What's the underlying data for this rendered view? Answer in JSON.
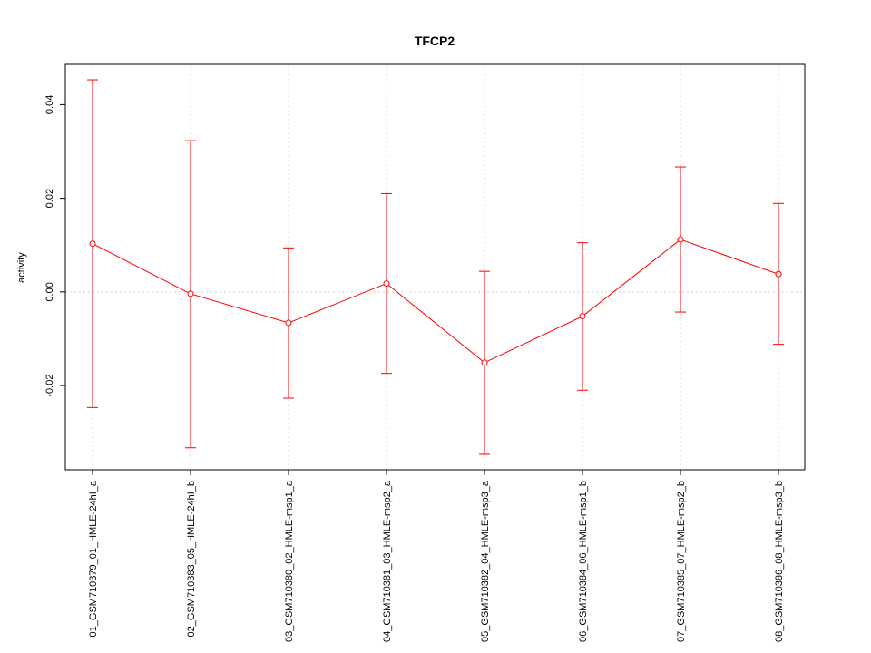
{
  "chart_data": {
    "type": "line",
    "title": "TFCP2",
    "xlabel": "",
    "ylabel": "activity",
    "categories": [
      "01_GSM710379_01_HMLE-24hI_a",
      "02_GSM710383_05_HMLE-24hI_b",
      "03_GSM710380_02_HMLE-msp1_a",
      "04_GSM710381_03_HMLE-msp2_a",
      "05_GSM710382_04_HMLE-msp3_a",
      "06_GSM710384_06_HMLE-msp1_b",
      "07_GSM710385_07_HMLE-msp2_b",
      "08_GSM710386_08_HMLE-msp3_b"
    ],
    "values": [
      0.0103,
      -0.0004,
      -0.0066,
      0.0018,
      -0.0151,
      -0.0052,
      0.0112,
      0.0038
    ],
    "error_upper": [
      0.0453,
      0.0323,
      0.0094,
      0.021,
      0.0044,
      0.0105,
      0.0267,
      0.0189
    ],
    "error_lower": [
      -0.0247,
      -0.0333,
      -0.0227,
      -0.0174,
      -0.0347,
      -0.021,
      -0.0043,
      -0.0112
    ],
    "yticks": [
      -0.02,
      0.0,
      0.02,
      0.04
    ],
    "ytick_labels": [
      "-0.02",
      "0.00",
      "0.02",
      "0.04"
    ],
    "ylim": [
      -0.038,
      0.0486
    ],
    "grid": true,
    "colors": {
      "series": "#ff0000",
      "grid": "#d3d3d3",
      "axis": "#000000"
    }
  }
}
